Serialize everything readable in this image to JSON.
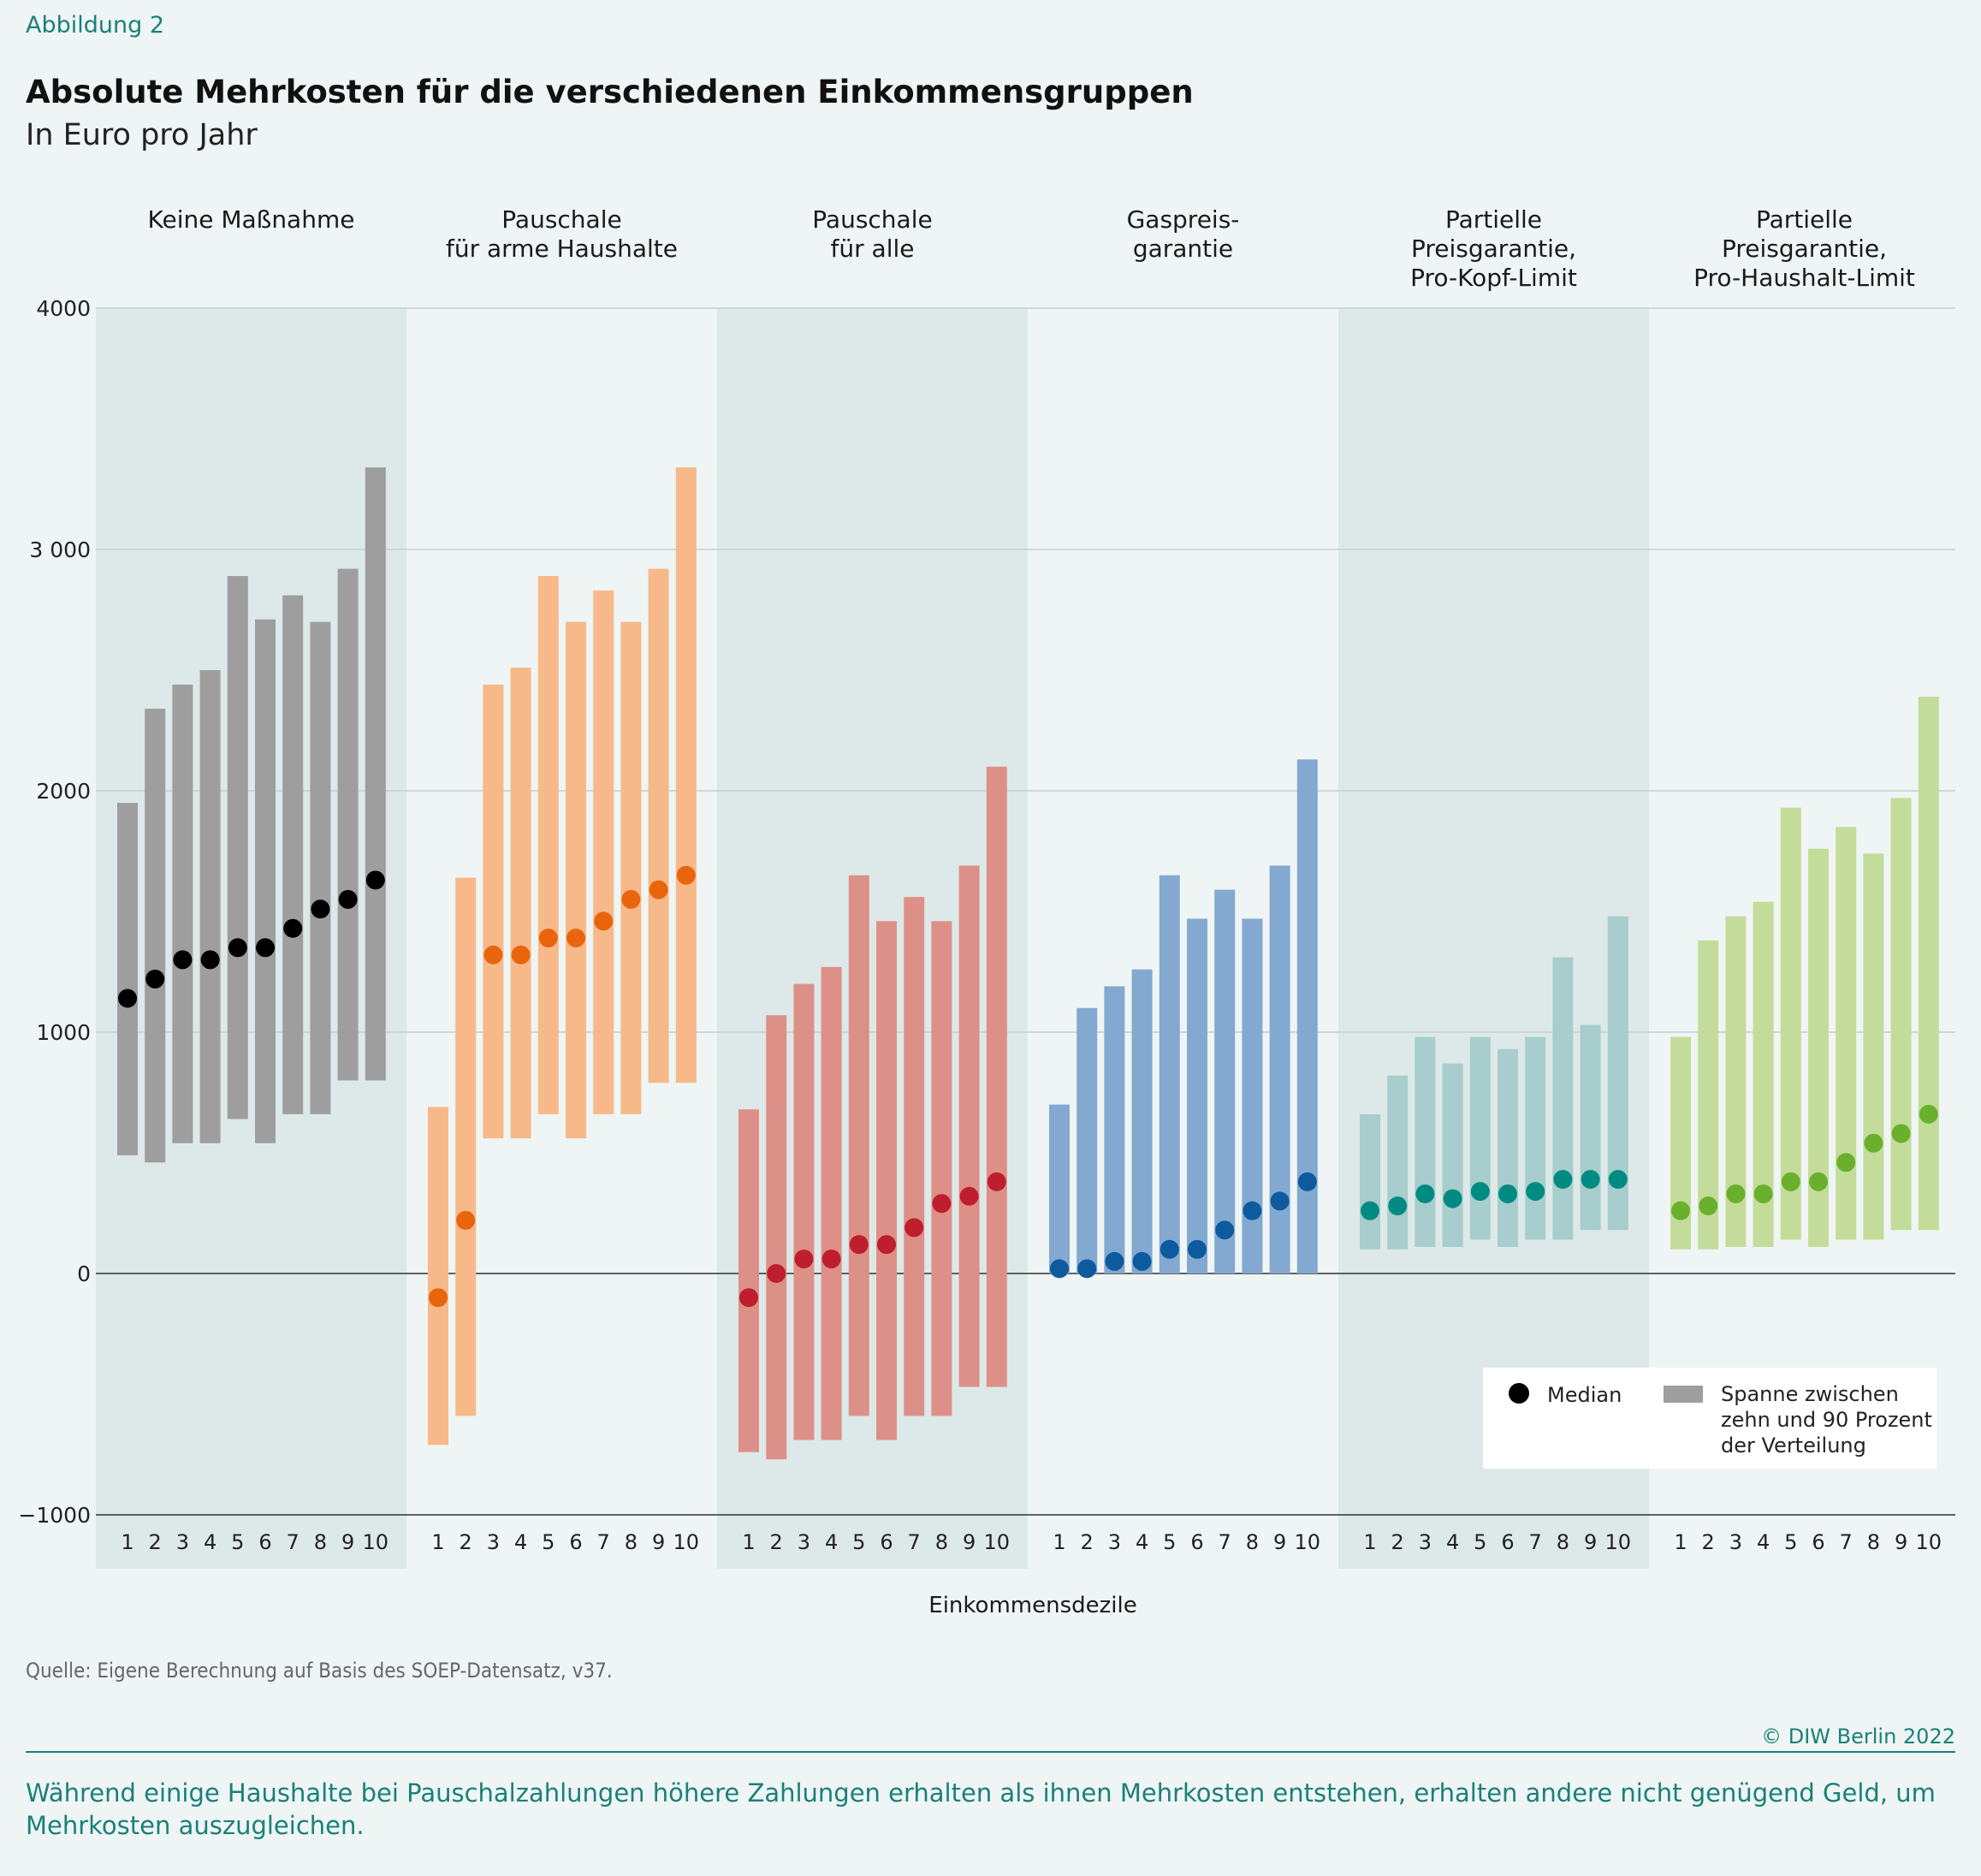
{
  "header": {
    "figure_label": "Abbildung 2",
    "title": "Absolute Mehrkosten für die verschiedenen Einkommensgruppen",
    "subtitle": "In Euro pro Jahr"
  },
  "footer": {
    "source": "Quelle: Eigene Berechnung auf Basis des SOEP-Datensatz, v37.",
    "copyright": "© DIW Berlin 2022",
    "takeaway": "Während einige Haushalte bei Pauschalzahlungen höhere Zahlungen erhalten als ihnen Mehrkosten entstehen, erhalten andere nicht genügend Geld, um Mehrkosten auszugleichen."
  },
  "chart_data": {
    "type": "range-dot",
    "title": "Absolute Mehrkosten für die verschiedenen Einkommensgruppen",
    "ylabel": "In Euro pro Jahr",
    "xlabel": "Einkommensdezile",
    "ylim": [
      -1000,
      4000
    ],
    "yticks": [
      -1000,
      0,
      1000,
      2000,
      3000,
      4000
    ],
    "ytick_labels": [
      "−1000",
      "0",
      "1000",
      "2000",
      "3 000",
      "4000"
    ],
    "categories": [
      "1",
      "2",
      "3",
      "4",
      "5",
      "6",
      "7",
      "8",
      "9",
      "10"
    ],
    "legend": {
      "position": "bottom-right",
      "median_label": "Median",
      "range_label": [
        "Spanne zwischen",
        "zehn und 90 Prozent",
        "der Verteilung"
      ]
    },
    "panels": [
      {
        "title": [
          "Keine Maßnahme"
        ],
        "bar_color": "#9e9e9e",
        "dot_color": "#000000",
        "shaded": true,
        "p10": [
          490,
          460,
          540,
          540,
          640,
          540,
          660,
          660,
          800,
          800
        ],
        "p90": [
          1950,
          2340,
          2440,
          2500,
          2890,
          2710,
          2810,
          2700,
          2920,
          3340
        ],
        "median": [
          1140,
          1220,
          1300,
          1300,
          1350,
          1350,
          1430,
          1510,
          1550,
          1630
        ]
      },
      {
        "title": [
          "Pauschale",
          "für arme Haushalte"
        ],
        "bar_color": "#f7b98a",
        "dot_color": "#e8650e",
        "shaded": false,
        "p10": [
          -710,
          -590,
          560,
          560,
          660,
          560,
          660,
          660,
          790,
          790
        ],
        "p90": [
          690,
          1640,
          2440,
          2510,
          2890,
          2700,
          2830,
          2700,
          2920,
          3340
        ],
        "median": [
          -100,
          220,
          1320,
          1320,
          1390,
          1390,
          1460,
          1550,
          1590,
          1650
        ]
      },
      {
        "title": [
          "Pauschale",
          "für alle"
        ],
        "bar_color": "#dd9088",
        "dot_color": "#be1e2d",
        "shaded": true,
        "p10": [
          -740,
          -770,
          -690,
          -690,
          -590,
          -690,
          -590,
          -590,
          -470,
          -470
        ],
        "p90": [
          680,
          1070,
          1200,
          1270,
          1650,
          1460,
          1560,
          1460,
          1690,
          2100
        ],
        "median": [
          -100,
          0,
          60,
          60,
          120,
          120,
          190,
          290,
          320,
          380
        ]
      },
      {
        "title": [
          "Gaspreis-",
          "garantie"
        ],
        "bar_color": "#84a9d0",
        "dot_color": "#0d5a9e",
        "shaded": false,
        "p10": [
          0,
          0,
          0,
          0,
          0,
          0,
          0,
          0,
          0,
          0
        ],
        "p90": [
          700,
          1100,
          1190,
          1260,
          1650,
          1470,
          1590,
          1470,
          1690,
          2130
        ],
        "median": [
          20,
          20,
          50,
          50,
          100,
          100,
          180,
          260,
          300,
          380
        ]
      },
      {
        "title": [
          "Partielle",
          "Preisgarantie,",
          "Pro-Kopf-Limit"
        ],
        "bar_color": "#a7cdcc",
        "dot_color": "#008b82",
        "shaded": true,
        "p10": [
          100,
          100,
          110,
          110,
          140,
          110,
          140,
          140,
          180,
          180
        ],
        "p90": [
          660,
          820,
          980,
          870,
          980,
          930,
          980,
          1310,
          1030,
          1480
        ],
        "median": [
          260,
          280,
          330,
          310,
          340,
          330,
          340,
          390,
          390,
          390
        ]
      },
      {
        "title": [
          "Partielle",
          "Preisgarantie,",
          "Pro-Haushalt-Limit"
        ],
        "bar_color": "#c4dc9a",
        "dot_color": "#6ab02c",
        "shaded": false,
        "p10": [
          100,
          100,
          110,
          110,
          140,
          110,
          140,
          140,
          180,
          180
        ],
        "p90": [
          980,
          1380,
          1480,
          1540,
          1930,
          1760,
          1850,
          1740,
          1970,
          2390
        ],
        "median": [
          260,
          280,
          330,
          330,
          380,
          380,
          460,
          540,
          580,
          660
        ]
      }
    ]
  }
}
